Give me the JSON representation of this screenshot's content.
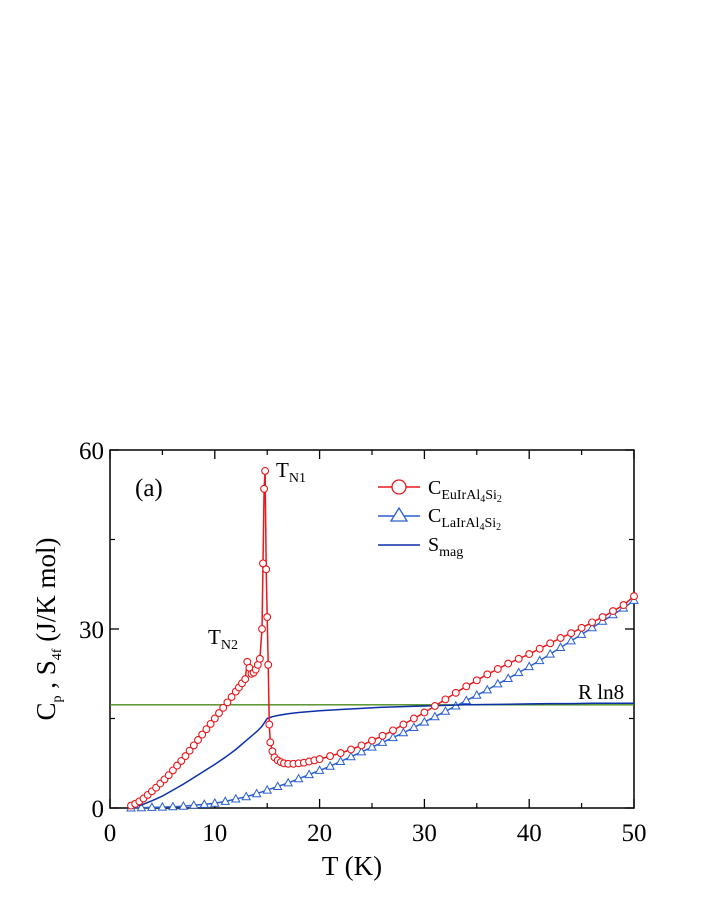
{
  "chart_data": {
    "type": "line",
    "panel_label": "(a)",
    "xlabel": "T (K)",
    "ylabel_parts": [
      "C",
      "p",
      " , S",
      "4f",
      " (J/K mol)"
    ],
    "xlim": [
      0,
      50
    ],
    "ylim": [
      0,
      60
    ],
    "xticks": [
      0,
      10,
      20,
      30,
      40,
      50
    ],
    "yticks": [
      0,
      30,
      60
    ],
    "xticks_minor": [
      5,
      15,
      25,
      35,
      45
    ],
    "yticks_minor": [
      15,
      45
    ],
    "grid": false,
    "legend_position": "top-right",
    "annotations": [
      {
        "main": "T",
        "sub": "N1",
        "x": 15.0,
        "y": 56.5
      },
      {
        "main": "T",
        "sub": "N2",
        "x": 13.2,
        "y": 27.0
      },
      {
        "main": "R ln8",
        "sub": "",
        "x": 45.5,
        "y": 18.3
      }
    ],
    "series": [
      {
        "key": "eu",
        "legend": {
          "main": "C",
          "sub": "EuIrAl",
          "sub2": "4",
          "sub3": "Si",
          "sub4": "2"
        },
        "color": "#e8181c",
        "marker": "circle",
        "x": [
          2.0,
          2.4,
          2.8,
          3.2,
          3.6,
          4.0,
          4.4,
          4.8,
          5.2,
          5.6,
          6.0,
          6.4,
          6.8,
          7.2,
          7.6,
          8.0,
          8.4,
          8.8,
          9.2,
          9.6,
          10.0,
          10.4,
          10.8,
          11.2,
          11.6,
          12.0,
          12.3,
          12.6,
          12.9,
          13.1,
          13.3,
          13.5,
          13.7,
          13.9,
          14.1,
          14.3,
          14.5,
          14.6,
          14.7,
          14.8,
          14.9,
          15.0,
          15.1,
          15.2,
          15.3,
          15.5,
          15.7,
          16.0,
          16.3,
          16.6,
          17.0,
          17.5,
          18.0,
          18.5,
          19.0,
          19.5,
          20.0,
          21.0,
          22.0,
          23.0,
          24.0,
          25.0,
          26.0,
          27.0,
          28.0,
          29.0,
          30.0,
          31.0,
          32.0,
          33.0,
          34.0,
          35.0,
          36.0,
          37.0,
          38.0,
          39.0,
          40.0,
          41.0,
          42.0,
          43.0,
          44.0,
          45.0,
          46.0,
          47.0,
          48.0,
          49.0,
          50.0
        ],
        "y": [
          0.4,
          0.7,
          1.1,
          1.6,
          2.2,
          2.8,
          3.4,
          4.1,
          4.8,
          5.5,
          6.3,
          7.1,
          7.9,
          8.7,
          9.6,
          10.5,
          11.4,
          12.3,
          13.2,
          14.1,
          15.0,
          15.9,
          16.8,
          17.7,
          18.6,
          19.5,
          20.2,
          20.9,
          21.6,
          24.5,
          23.5,
          22.5,
          22.7,
          23.2,
          24.0,
          25.0,
          30.0,
          41.0,
          53.5,
          56.5,
          40.0,
          32.0,
          24.0,
          14.0,
          11.0,
          9.5,
          8.5,
          8.0,
          7.7,
          7.5,
          7.4,
          7.4,
          7.5,
          7.6,
          7.8,
          8.0,
          8.2,
          8.7,
          9.2,
          9.8,
          10.5,
          11.3,
          12.1,
          13.0,
          14.0,
          15.0,
          16.0,
          17.1,
          18.2,
          19.3,
          20.4,
          21.4,
          22.4,
          23.3,
          24.2,
          25.0,
          25.8,
          26.7,
          27.6,
          28.5,
          29.3,
          30.2,
          31.1,
          32.0,
          33.0,
          34.0,
          35.5
        ]
      },
      {
        "key": "la",
        "legend": {
          "main": "C",
          "sub": "LaIrAl",
          "sub2": "4",
          "sub3": "Si",
          "sub4": "2"
        },
        "color": "#2a5fd0",
        "marker": "triangle",
        "x": [
          2.0,
          3.0,
          4.0,
          5.0,
          6.0,
          7.0,
          8.0,
          9.0,
          10.0,
          11.0,
          12.0,
          13.0,
          14.0,
          15.0,
          16.0,
          17.0,
          18.0,
          19.0,
          20.0,
          21.0,
          22.0,
          23.0,
          24.0,
          25.0,
          26.0,
          27.0,
          28.0,
          29.0,
          30.0,
          31.0,
          32.0,
          33.0,
          34.0,
          35.0,
          36.0,
          37.0,
          38.0,
          39.0,
          40.0,
          41.0,
          42.0,
          43.0,
          44.0,
          45.0,
          46.0,
          47.0,
          48.0,
          49.0,
          50.0
        ],
        "y": [
          0.0,
          0.05,
          0.1,
          0.15,
          0.2,
          0.3,
          0.45,
          0.6,
          0.8,
          1.1,
          1.5,
          1.9,
          2.4,
          3.0,
          3.6,
          4.2,
          4.9,
          5.6,
          6.3,
          7.0,
          7.8,
          8.6,
          9.4,
          10.2,
          11.0,
          11.8,
          12.6,
          13.5,
          14.4,
          15.3,
          16.2,
          17.1,
          18.0,
          18.9,
          19.8,
          20.8,
          21.7,
          22.7,
          23.7,
          24.7,
          25.8,
          26.9,
          28.0,
          29.1,
          30.2,
          31.3,
          32.4,
          33.5,
          34.8
        ]
      },
      {
        "key": "smag",
        "legend": {
          "main": "S",
          "sub": "mag",
          "sub2": "",
          "sub3": "",
          "sub4": ""
        },
        "color": "#0b2fa8",
        "marker": "none",
        "x": [
          2.0,
          3.0,
          4.0,
          5.0,
          6.0,
          7.0,
          8.0,
          9.0,
          10.0,
          11.0,
          12.0,
          13.0,
          14.0,
          14.5,
          15.0,
          15.5,
          16.0,
          17.0,
          18.0,
          20.0,
          22.0,
          24.0,
          26.0,
          28.0,
          30.0,
          32.0,
          34.0,
          36.0,
          38.0,
          40.0,
          42.0,
          44.0,
          46.0,
          48.0,
          50.0
        ],
        "y": [
          0.1,
          0.5,
          1.2,
          2.0,
          3.0,
          4.0,
          5.1,
          6.2,
          7.3,
          8.5,
          9.8,
          11.3,
          12.8,
          13.7,
          15.0,
          15.3,
          15.5,
          15.8,
          16.0,
          16.3,
          16.5,
          16.7,
          16.9,
          17.0,
          17.1,
          17.2,
          17.3,
          17.35,
          17.4,
          17.45,
          17.5,
          17.5,
          17.55,
          17.55,
          17.55
        ]
      },
      {
        "key": "rln8",
        "legend": null,
        "color": "#4a8a1c",
        "marker": "none",
        "x": [
          0,
          50
        ],
        "y": [
          17.29,
          17.29
        ]
      }
    ]
  }
}
